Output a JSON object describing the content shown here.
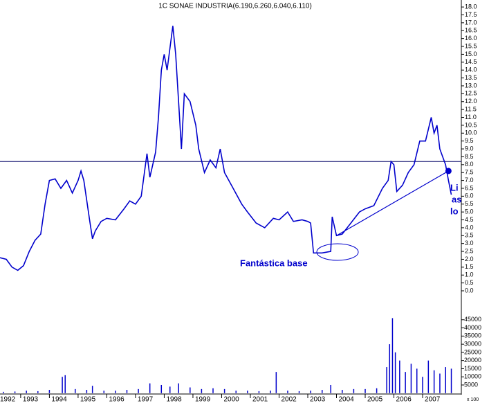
{
  "chart_data": [
    {
      "type": "line",
      "title": "1C SONAE INDUSTRIA(6.190,6.260,6.040,6.110)",
      "color": "#0000cc",
      "x": [
        1992.28,
        1992.5,
        1992.7,
        1992.9,
        1993.1,
        1993.3,
        1993.5,
        1993.7,
        1993.85,
        1994.0,
        1994.2,
        1994.4,
        1994.6,
        1994.8,
        1995.0,
        1995.1,
        1995.2,
        1995.4,
        1995.5,
        1995.6,
        1995.8,
        1996.0,
        1996.3,
        1996.6,
        1996.8,
        1997.0,
        1997.2,
        1997.4,
        1997.5,
        1997.7,
        1997.8,
        1997.9,
        1998.0,
        1998.1,
        1998.3,
        1998.4,
        1998.5,
        1998.6,
        1998.7,
        1998.9,
        1999.1,
        1999.2,
        1999.4,
        1999.6,
        1999.8,
        1999.95,
        2000.1,
        2000.4,
        2000.7,
        2000.9,
        2001.2,
        2001.5,
        2001.8,
        2002.0,
        2002.3,
        2002.5,
        2002.8,
        2003.0,
        2003.1,
        2003.2,
        2003.5,
        2003.8,
        2003.85,
        2004.0,
        2004.2,
        2004.5,
        2004.8,
        2005.0,
        2005.3,
        2005.6,
        2005.8,
        2005.9,
        2006.0,
        2006.1,
        2006.3,
        2006.5,
        2006.7,
        2006.9,
        2007.1,
        2007.3,
        2007.4,
        2007.5,
        2007.6,
        2007.8,
        2007.9,
        2008.0
      ],
      "values": [
        2.1,
        2.0,
        1.5,
        1.3,
        1.6,
        2.5,
        3.2,
        3.6,
        5.5,
        7.0,
        7.1,
        6.5,
        7.0,
        6.2,
        7.0,
        7.6,
        7.0,
        4.5,
        3.3,
        3.8,
        4.4,
        4.6,
        4.5,
        5.2,
        5.7,
        5.5,
        6.0,
        8.7,
        7.2,
        8.8,
        11.0,
        14.0,
        15.0,
        14.0,
        16.8,
        15.0,
        12.0,
        9.0,
        12.5,
        12.0,
        10.5,
        9.0,
        7.5,
        8.3,
        7.8,
        9.0,
        7.5,
        6.5,
        5.5,
        5.0,
        4.3,
        4.0,
        4.6,
        4.5,
        5.0,
        4.4,
        4.5,
        4.4,
        4.3,
        2.4,
        2.4,
        2.5,
        4.7,
        3.5,
        3.6,
        4.3,
        5.0,
        5.2,
        5.4,
        6.5,
        7.0,
        8.2,
        8.0,
        6.3,
        6.7,
        7.5,
        8.0,
        9.5,
        9.5,
        11.0,
        10.0,
        10.5,
        9.0,
        8.0,
        7.0,
        6.1
      ],
      "xlim": [
        1992.28,
        2008.3
      ],
      "ylim": [
        0,
        18.4
      ],
      "yticks": [
        {
          "value": 0,
          "label": "0.0"
        },
        {
          "value": 0.5,
          "label": "0.5"
        },
        {
          "value": 1,
          "label": "1.0"
        },
        {
          "value": 1.5,
          "label": "1.5"
        },
        {
          "value": 2,
          "label": "2.0"
        },
        {
          "value": 2.5,
          "label": "2.5"
        },
        {
          "value": 3,
          "label": "3.0"
        },
        {
          "value": 3.5,
          "label": "3.5"
        },
        {
          "value": 4,
          "label": "4.0"
        },
        {
          "value": 4.5,
          "label": "4.5"
        },
        {
          "value": 5,
          "label": "5.0"
        },
        {
          "value": 5.5,
          "label": "5.5"
        },
        {
          "value": 6,
          "label": "6.0"
        },
        {
          "value": 6.5,
          "label": "6.5"
        },
        {
          "value": 7,
          "label": "7.0"
        },
        {
          "value": 7.5,
          "label": "7.5"
        },
        {
          "value": 8,
          "label": "8.0"
        },
        {
          "value": 8.5,
          "label": "8.5"
        },
        {
          "value": 9,
          "label": "9.0"
        },
        {
          "value": 9.5,
          "label": "9.5"
        },
        {
          "value": 10,
          "label": "10.0"
        },
        {
          "value": 10.5,
          "label": "10.5"
        },
        {
          "value": 11,
          "label": "11.0"
        },
        {
          "value": 11.5,
          "label": "11.5"
        },
        {
          "value": 12,
          "label": "12.0"
        },
        {
          "value": 12.5,
          "label": "12.5"
        },
        {
          "value": 13,
          "label": "13.0"
        },
        {
          "value": 13.5,
          "label": "13.5"
        },
        {
          "value": 14,
          "label": "14.0"
        },
        {
          "value": 14.5,
          "label": "14.5"
        },
        {
          "value": 15,
          "label": "15.0"
        },
        {
          "value": 15.5,
          "label": "15.5"
        },
        {
          "value": 16,
          "label": "16.0"
        },
        {
          "value": 16.5,
          "label": "16.5"
        },
        {
          "value": 17,
          "label": "17.0"
        },
        {
          "value": 17.5,
          "label": "17.5"
        },
        {
          "value": 18,
          "label": "18.0"
        }
      ],
      "hline": 8.2,
      "trendline": {
        "x": [
          2004.0,
          2007.9
        ],
        "y": [
          3.5,
          7.6
        ]
      },
      "annotations": [
        "Fantástica base",
        "Li",
        "as",
        "lo"
      ]
    },
    {
      "type": "bar",
      "color": "#0000cc",
      "units_label": "x 100",
      "x": [
        1992.4,
        1992.8,
        1993.2,
        1993.6,
        1994.0,
        1994.45,
        1994.55,
        1994.9,
        1995.3,
        1995.5,
        1995.9,
        1996.3,
        1996.7,
        1997.1,
        1997.5,
        1997.9,
        1998.2,
        1998.5,
        1998.9,
        1999.3,
        1999.7,
        2000.1,
        2000.5,
        2000.9,
        2001.3,
        2001.7,
        2001.9,
        2002.3,
        2002.7,
        2003.1,
        2003.5,
        2003.8,
        2004.2,
        2004.6,
        2005.0,
        2005.4,
        2005.75,
        2005.85,
        2005.95,
        2006.05,
        2006.2,
        2006.4,
        2006.6,
        2006.8,
        2007.0,
        2007.2,
        2007.4,
        2007.6,
        2007.8,
        2008.0
      ],
      "values": [
        800,
        1000,
        1500,
        1200,
        2000,
        10000,
        11000,
        2500,
        2000,
        4500,
        1500,
        1500,
        2000,
        2500,
        6000,
        5000,
        4000,
        6000,
        3500,
        2500,
        3000,
        2500,
        1500,
        1500,
        1200,
        1500,
        13000,
        1500,
        1200,
        1500,
        2000,
        5000,
        2000,
        2500,
        2500,
        3000,
        16000,
        30000,
        46000,
        25000,
        20000,
        13000,
        18000,
        15000,
        10000,
        20000,
        14000,
        12000,
        16000,
        15000
      ],
      "xlim": [
        1992.28,
        2008.3
      ],
      "ylim": [
        0,
        50000
      ],
      "yticks": [
        5000,
        10000,
        15000,
        20000,
        25000,
        30000,
        35000,
        40000,
        45000
      ],
      "xticks": [
        1992,
        1993,
        1994,
        1995,
        1996,
        1997,
        1998,
        1999,
        2000,
        2001,
        2002,
        2003,
        2004,
        2005,
        2006,
        2007
      ]
    }
  ]
}
